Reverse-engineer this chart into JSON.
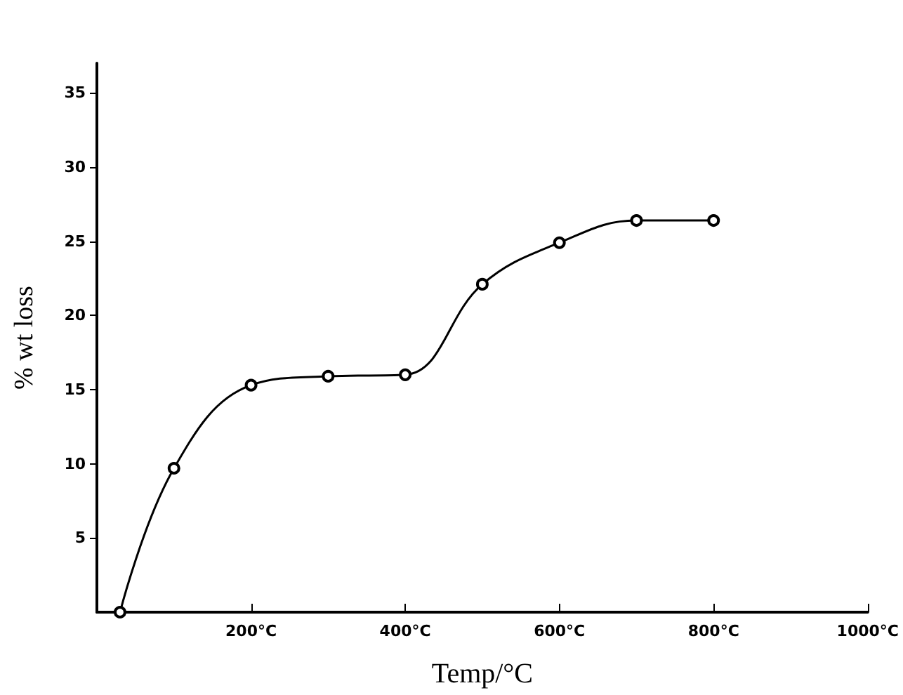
{
  "chart_data": {
    "type": "line",
    "xlabel": "Temp/°C",
    "ylabel": "% wt loss",
    "x": [
      30,
      100,
      200,
      300,
      400,
      500,
      600,
      700,
      800
    ],
    "series": [
      {
        "color": "#000000",
        "values": [
          0,
          9.7,
          15.3,
          15.9,
          16.0,
          22.1,
          24.9,
          26.4,
          26.4
        ]
      }
    ],
    "xlim": [
      0,
      1000
    ],
    "ylim": [
      0,
      37
    ],
    "xticks": [
      {
        "value": 200,
        "label": "200°C"
      },
      {
        "value": 400,
        "label": "400°C"
      },
      {
        "value": 600,
        "label": "600°C"
      },
      {
        "value": 800,
        "label": "800°C"
      },
      {
        "value": 1000,
        "label": "1000°C"
      }
    ],
    "yticks": [
      5,
      10,
      15,
      20,
      25,
      30,
      35
    ],
    "grid": false,
    "marker": "circle",
    "line_style": "solid"
  }
}
